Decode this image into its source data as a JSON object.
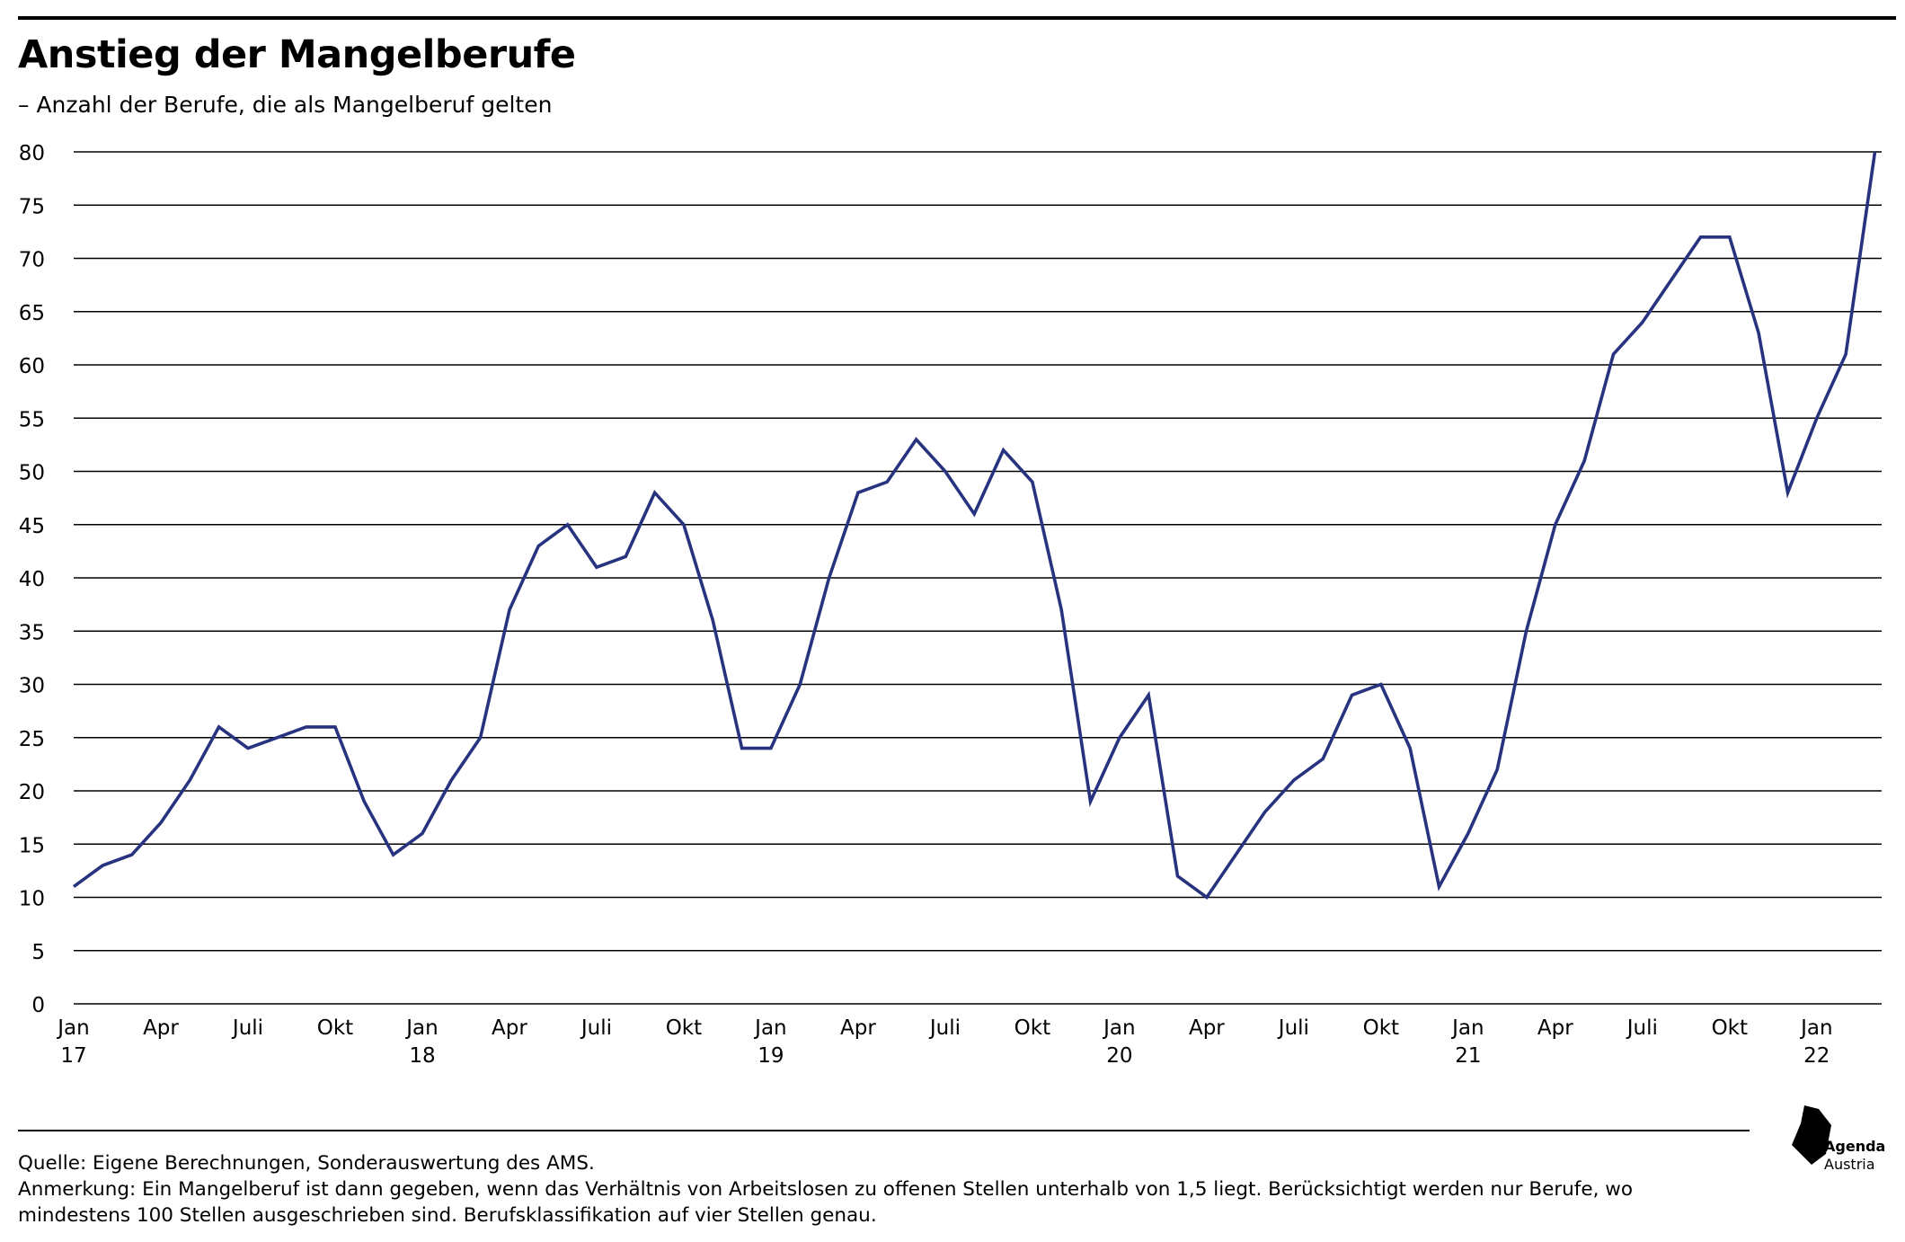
{
  "title": "Anstieg der Mangelberufe",
  "subtitle": "– Anzahl der Berufe, die als Mangelberuf gelten",
  "footer": {
    "source": "Quelle: Eigene Berechnungen, Sonderauswertung des AMS.",
    "note": "Anmerkung: Ein Mangelberuf ist dann gegeben, wenn das Verhältnis von Arbeitslosen zu offenen Stellen unterhalb von 1,5 liegt. Berücksichtigt werden nur Berufe, wo mindestens 100 Stellen ausgeschrieben sind. Berufsklassifikation auf vier Stellen genau."
  },
  "logo": {
    "line1": "Agenda",
    "line2": "Austria"
  },
  "colors": {
    "line": "#27337f",
    "grid": "#000000",
    "text": "#000000"
  },
  "chart_data": {
    "type": "line",
    "title": "Anstieg der Mangelberufe",
    "subtitle": "– Anzahl der Berufe, die als Mangelberuf gelten",
    "xlabel": "",
    "ylabel": "",
    "ylim": [
      0,
      80
    ],
    "yticks": [
      0,
      5,
      10,
      15,
      20,
      25,
      30,
      35,
      40,
      45,
      50,
      55,
      60,
      65,
      70,
      75,
      80
    ],
    "grid": true,
    "legend": "none",
    "x": [
      "2017-01",
      "2017-02",
      "2017-03",
      "2017-04",
      "2017-05",
      "2017-06",
      "2017-07",
      "2017-08",
      "2017-09",
      "2017-10",
      "2017-11",
      "2017-12",
      "2018-01",
      "2018-02",
      "2018-03",
      "2018-04",
      "2018-05",
      "2018-06",
      "2018-07",
      "2018-08",
      "2018-09",
      "2018-10",
      "2018-11",
      "2018-12",
      "2019-01",
      "2019-02",
      "2019-03",
      "2019-04",
      "2019-05",
      "2019-06",
      "2019-07",
      "2019-08",
      "2019-09",
      "2019-10",
      "2019-11",
      "2019-12",
      "2020-01",
      "2020-02",
      "2020-03",
      "2020-04",
      "2020-05",
      "2020-06",
      "2020-07",
      "2020-08",
      "2020-09",
      "2020-10",
      "2020-11",
      "2020-12",
      "2021-01",
      "2021-02",
      "2021-03",
      "2021-04",
      "2021-05",
      "2021-06",
      "2021-07",
      "2021-08",
      "2021-09",
      "2021-10",
      "2021-11",
      "2021-12",
      "2022-01",
      "2022-02",
      "2022-03"
    ],
    "xticks": [
      {
        "x": "2017-01",
        "label": "Jan",
        "year": "17"
      },
      {
        "x": "2017-04",
        "label": "Apr"
      },
      {
        "x": "2017-07",
        "label": "Juli"
      },
      {
        "x": "2017-10",
        "label": "Okt"
      },
      {
        "x": "2018-01",
        "label": "Jan",
        "year": "18"
      },
      {
        "x": "2018-04",
        "label": "Apr"
      },
      {
        "x": "2018-07",
        "label": "Juli"
      },
      {
        "x": "2018-10",
        "label": "Okt"
      },
      {
        "x": "2019-01",
        "label": "Jan",
        "year": "19"
      },
      {
        "x": "2019-04",
        "label": "Apr"
      },
      {
        "x": "2019-07",
        "label": "Juli"
      },
      {
        "x": "2019-10",
        "label": "Okt"
      },
      {
        "x": "2020-01",
        "label": "Jan",
        "year": "20"
      },
      {
        "x": "2020-04",
        "label": "Apr"
      },
      {
        "x": "2020-07",
        "label": "Juli"
      },
      {
        "x": "2020-10",
        "label": "Okt"
      },
      {
        "x": "2021-01",
        "label": "Jan",
        "year": "21"
      },
      {
        "x": "2021-04",
        "label": "Apr"
      },
      {
        "x": "2021-07",
        "label": "Juli"
      },
      {
        "x": "2021-10",
        "label": "Okt"
      },
      {
        "x": "2022-01",
        "label": "Jan",
        "year": "22"
      }
    ],
    "series": [
      {
        "values": [
          11,
          13,
          14,
          17,
          21,
          26,
          24,
          25,
          26,
          26,
          19,
          14,
          16,
          21,
          25,
          37,
          43,
          45,
          41,
          42,
          48,
          45,
          36,
          24,
          24,
          30,
          40,
          48,
          49,
          53,
          50,
          46,
          52,
          49,
          37,
          19,
          25,
          29,
          12,
          10,
          14,
          18,
          21,
          23,
          29,
          30,
          24,
          11,
          16,
          22,
          35,
          45,
          51,
          61,
          64,
          68,
          72,
          72,
          63,
          48,
          55,
          61,
          80
        ]
      }
    ]
  }
}
